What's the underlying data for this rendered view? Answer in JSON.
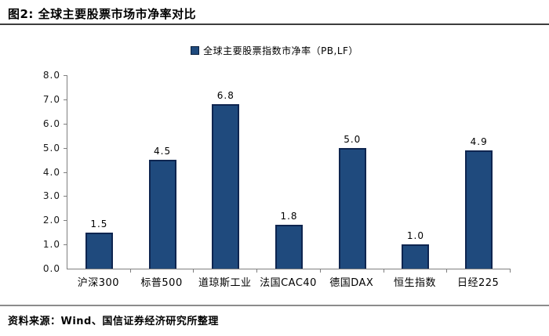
{
  "figure": {
    "title": "图2: 全球主要股票市场市净率对比",
    "source": "资料来源：Wind、国信证券经济研究所整理"
  },
  "legend": {
    "label": "全球主要股票指数市净率（PB,LF）"
  },
  "colors": {
    "bar_fill": "#1F4A7D",
    "bar_border": "#0E2550",
    "axis": "#7F7F7F",
    "title_rule": "#3D3D3D",
    "footer_rule": "#8C8C8C",
    "text": "#000000"
  },
  "chart_data": {
    "type": "bar",
    "title": "图2: 全球主要股票市场市净率对比",
    "categories": [
      "沪深300",
      "标普500",
      "道琼斯工业",
      "法国CAC40",
      "德国DAX",
      "恒生指数",
      "日经225"
    ],
    "values": [
      1.5,
      4.5,
      6.8,
      1.8,
      5.0,
      1.0,
      4.9
    ],
    "value_labels": [
      "1.5",
      "4.5",
      "6.8",
      "1.8",
      "5.0",
      "1.0",
      "4.9"
    ],
    "legend_entries": [
      "全球主要股票指数市净率（PB,LF）"
    ],
    "legend_position": "top-center",
    "xlabel": "",
    "ylabel": "",
    "ylim": [
      0,
      8
    ],
    "ytick_labels": [
      "0.0",
      "1.0",
      "2.0",
      "3.0",
      "4.0",
      "5.0",
      "6.0",
      "7.0",
      "8.0"
    ],
    "grid": false
  }
}
